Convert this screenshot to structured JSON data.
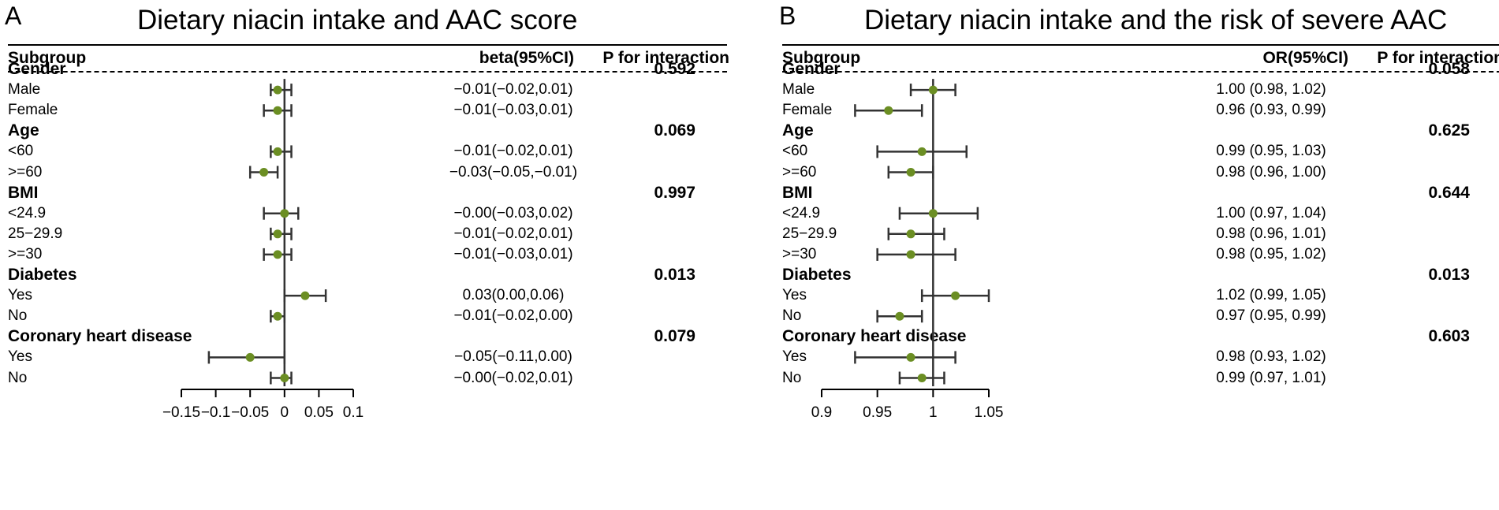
{
  "chart_data": [
    {
      "type": "forest",
      "panel_letter": "A",
      "title": "Dietary niacin intake and AAC score",
      "headers": {
        "subgroup": "Subgroup",
        "estimate": "beta(95%CI)",
        "p": "P for interaction"
      },
      "xlim": [
        -0.15,
        0.1
      ],
      "ref_line": 0,
      "ticks": [
        -0.15,
        -0.1,
        -0.05,
        0,
        0.05,
        0.1
      ],
      "tick_labels": [
        "−0.15",
        "−0.1",
        "−0.05",
        "0",
        "0.05",
        "0.1"
      ],
      "rows": [
        {
          "kind": "group",
          "label": "Gender",
          "p": "0.592"
        },
        {
          "kind": "item",
          "label": "Male",
          "est": -0.01,
          "lo": -0.02,
          "hi": 0.01,
          "text": "−0.01(−0.02,0.01)"
        },
        {
          "kind": "item",
          "label": "Female",
          "est": -0.01,
          "lo": -0.03,
          "hi": 0.01,
          "text": "−0.01(−0.03,0.01)"
        },
        {
          "kind": "group",
          "label": "Age",
          "p": "0.069"
        },
        {
          "kind": "item",
          "label": "<60",
          "est": -0.01,
          "lo": -0.02,
          "hi": 0.01,
          "text": "−0.01(−0.02,0.01)"
        },
        {
          "kind": "item",
          "label": ">=60",
          "est": -0.03,
          "lo": -0.05,
          "hi": -0.01,
          "text": "−0.03(−0.05,−0.01)"
        },
        {
          "kind": "group",
          "label": "BMI",
          "p": "0.997"
        },
        {
          "kind": "item",
          "label": "<24.9",
          "est": 0.0,
          "lo": -0.03,
          "hi": 0.02,
          "text": "−0.00(−0.03,0.02)"
        },
        {
          "kind": "item",
          "label": "25−29.9",
          "est": -0.01,
          "lo": -0.02,
          "hi": 0.01,
          "text": "−0.01(−0.02,0.01)"
        },
        {
          "kind": "item",
          "label": ">=30",
          "est": -0.01,
          "lo": -0.03,
          "hi": 0.01,
          "text": "−0.01(−0.03,0.01)"
        },
        {
          "kind": "group",
          "label": "Diabetes",
          "p": "0.013"
        },
        {
          "kind": "item",
          "label": "Yes",
          "est": 0.03,
          "lo": 0.0,
          "hi": 0.06,
          "text": "0.03(0.00,0.06)"
        },
        {
          "kind": "item",
          "label": "No",
          "est": -0.01,
          "lo": -0.02,
          "hi": 0.0,
          "text": "−0.01(−0.02,0.00)"
        },
        {
          "kind": "group",
          "label": "Coronary heart disease",
          "p": "0.079"
        },
        {
          "kind": "item",
          "label": "Yes",
          "est": -0.05,
          "lo": -0.11,
          "hi": 0.0,
          "text": "−0.05(−0.11,0.00)"
        },
        {
          "kind": "item",
          "label": "No",
          "est": 0.0,
          "lo": -0.02,
          "hi": 0.01,
          "text": "−0.00(−0.02,0.01)"
        }
      ]
    },
    {
      "type": "forest",
      "panel_letter": "B",
      "title": "Dietary niacin intake and the risk of severe AAC",
      "headers": {
        "subgroup": "Subgroup",
        "estimate": "OR(95%CI)",
        "p": "P for interaction"
      },
      "xlim": [
        0.9,
        1.05
      ],
      "ref_line": 1,
      "ticks": [
        0.9,
        0.95,
        1,
        1.05
      ],
      "tick_labels": [
        "0.9",
        "0.95",
        "1",
        "1.05"
      ],
      "rows": [
        {
          "kind": "group",
          "label": "Gender",
          "p": "0.058"
        },
        {
          "kind": "item",
          "label": "Male",
          "est": 1.0,
          "lo": 0.98,
          "hi": 1.02,
          "text": "1.00 (0.98, 1.02)"
        },
        {
          "kind": "item",
          "label": "Female",
          "est": 0.96,
          "lo": 0.93,
          "hi": 0.99,
          "text": "0.96 (0.93, 0.99)"
        },
        {
          "kind": "group",
          "label": "Age",
          "p": "0.625"
        },
        {
          "kind": "item",
          "label": "<60",
          "est": 0.99,
          "lo": 0.95,
          "hi": 1.03,
          "text": "0.99 (0.95, 1.03)"
        },
        {
          "kind": "item",
          "label": ">=60",
          "est": 0.98,
          "lo": 0.96,
          "hi": 1.0,
          "text": "0.98 (0.96, 1.00)"
        },
        {
          "kind": "group",
          "label": "BMI",
          "p": "0.644"
        },
        {
          "kind": "item",
          "label": "<24.9",
          "est": 1.0,
          "lo": 0.97,
          "hi": 1.04,
          "text": "1.00 (0.97, 1.04)"
        },
        {
          "kind": "item",
          "label": "25−29.9",
          "est": 0.98,
          "lo": 0.96,
          "hi": 1.01,
          "text": "0.98 (0.96, 1.01)"
        },
        {
          "kind": "item",
          "label": ">=30",
          "est": 0.98,
          "lo": 0.95,
          "hi": 1.02,
          "text": "0.98 (0.95, 1.02)"
        },
        {
          "kind": "group",
          "label": "Diabetes",
          "p": "0.013"
        },
        {
          "kind": "item",
          "label": "Yes",
          "est": 1.02,
          "lo": 0.99,
          "hi": 1.05,
          "text": "1.02 (0.99, 1.05)"
        },
        {
          "kind": "item",
          "label": "No",
          "est": 0.97,
          "lo": 0.95,
          "hi": 0.99,
          "text": "0.97 (0.95, 0.99)"
        },
        {
          "kind": "group",
          "label": "Coronary heart disease",
          "p": "0.603"
        },
        {
          "kind": "item",
          "label": "Yes",
          "est": 0.98,
          "lo": 0.93,
          "hi": 1.02,
          "text": "0.98 (0.93, 1.02)"
        },
        {
          "kind": "item",
          "label": "No",
          "est": 0.99,
          "lo": 0.97,
          "hi": 1.01,
          "text": "0.99 (0.97, 1.01)"
        }
      ]
    }
  ],
  "style": {
    "point_color": "#6b8e23",
    "line_color": "#333333"
  }
}
